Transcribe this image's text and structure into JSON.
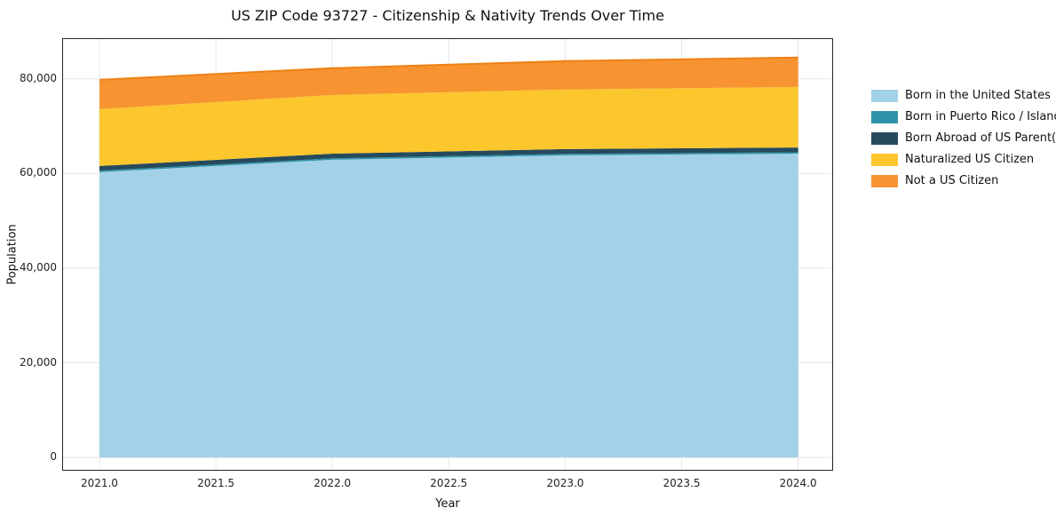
{
  "title": "US ZIP Code 93727 - Citizenship & Nativity Trends Over Time",
  "chart_data": {
    "type": "area",
    "stacked": true,
    "title": "US ZIP Code 93727 - Citizenship & Nativity Trends Over Time",
    "xlabel": "Year",
    "ylabel": "Population",
    "grid": true,
    "legend_position": "right",
    "x": [
      2021,
      2022,
      2023,
      2024
    ],
    "xlim": [
      2020.84,
      2024.15
    ],
    "ylim": [
      -2800,
      88600
    ],
    "x_ticks": [
      {
        "v": 2021.0,
        "label": "2021.0"
      },
      {
        "v": 2021.5,
        "label": "2021.5"
      },
      {
        "v": 2022.0,
        "label": "2022.0"
      },
      {
        "v": 2022.5,
        "label": "2022.5"
      },
      {
        "v": 2023.0,
        "label": "2023.0"
      },
      {
        "v": 2023.5,
        "label": "2023.5"
      },
      {
        "v": 2024.0,
        "label": "2024.0"
      }
    ],
    "y_ticks": [
      {
        "v": 0,
        "label": "0"
      },
      {
        "v": 20000,
        "label": "20,000"
      },
      {
        "v": 40000,
        "label": "40,000"
      },
      {
        "v": 60000,
        "label": "60,000"
      },
      {
        "v": 80000,
        "label": "80,000"
      }
    ],
    "series": [
      {
        "name": "Born in the United States",
        "color": "#A3D1E8",
        "values": [
          60300,
          62900,
          63850,
          64200
        ]
      },
      {
        "name": "Born in Puerto Rico / Islands",
        "color": "#2F93A8",
        "values": [
          300,
          300,
          300,
          300
        ]
      },
      {
        "name": "Born Abroad of US Parent(s)",
        "color": "#264A5D",
        "values": [
          1000,
          1000,
          1000,
          1000
        ]
      },
      {
        "name": "Naturalized US Citizen",
        "color": "#FCC62D",
        "values": [
          12000,
          12400,
          12600,
          12800
        ]
      },
      {
        "name": "Not a US Citizen",
        "color": "#F79431",
        "edge": "#EF8014",
        "values": [
          6200,
          5650,
          6000,
          6200
        ]
      }
    ],
    "colors": {
      "grid": "#e8e8e8",
      "spine": "#262626",
      "background": "#ffffff"
    }
  }
}
